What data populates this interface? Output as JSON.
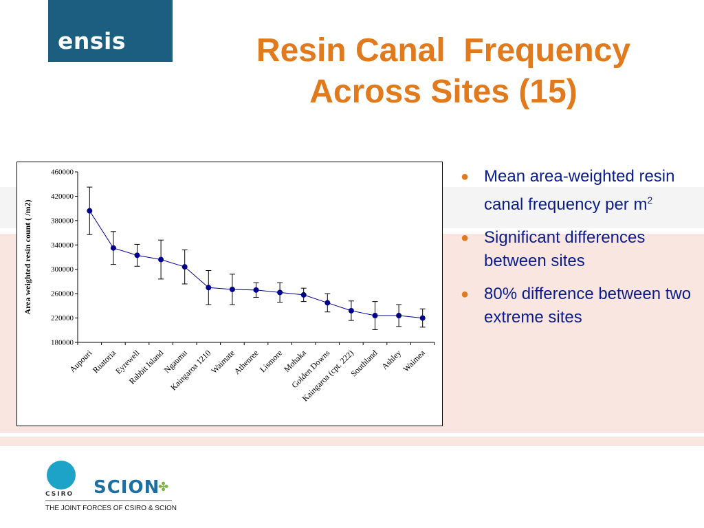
{
  "logo": {
    "text": "ensis"
  },
  "title": {
    "line1": "Resin Canal  Frequency",
    "line2": "Across Sites (15)"
  },
  "bullets": [
    {
      "text": "Mean area-weighted resin canal frequency per m",
      "sup": "2"
    },
    {
      "text": "Significant differences between sites",
      "sup": ""
    },
    {
      "text": "80% difference between two extreme sites",
      "sup": ""
    }
  ],
  "footer": {
    "csiro": "CSIRO",
    "scion": "SCION",
    "caption": "THE JOINT FORCES OF CSIRO & SCION"
  },
  "colors": {
    "title": "#e07a1d",
    "bullet_text": "#0b1d8b",
    "series": "#00008b",
    "logo_bg": "#1b5e80"
  },
  "chart_data": {
    "type": "line",
    "title": "",
    "xlabel": "",
    "ylabel": "Area weighted resin count ( /m2)",
    "ylim": [
      180000,
      460000
    ],
    "yticks": [
      180000,
      220000,
      260000,
      300000,
      340000,
      380000,
      420000,
      460000
    ],
    "grid": false,
    "categories": [
      "Aupouri",
      "Ruatoria",
      "Eyrewell",
      "Rabbit Island",
      "Ngaumu",
      "Kaingaroa 1210",
      "Waimate",
      "Athenree",
      "Lismore",
      "Mohaka",
      "Golden Downs",
      "Kaingaroa (cpt. 222)",
      "Southland",
      "Ashley",
      "Waimea"
    ],
    "series": [
      {
        "values": [
          396000,
          335000,
          323000,
          316000,
          304000,
          270000,
          267000,
          266000,
          262000,
          258000,
          245000,
          232000,
          224000,
          224000,
          220000
        ],
        "error": [
          39000,
          27000,
          18000,
          32000,
          28000,
          28000,
          25000,
          12000,
          16000,
          11000,
          15000,
          16000,
          23000,
          18000,
          15000
        ]
      }
    ]
  }
}
